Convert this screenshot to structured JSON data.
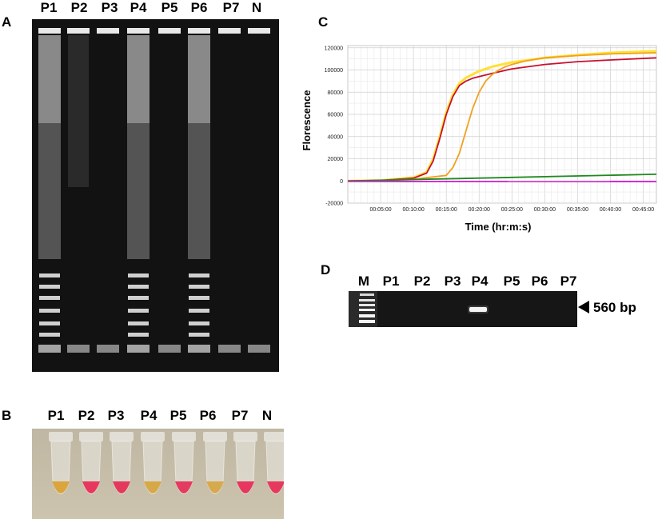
{
  "panels": {
    "A": {
      "letter": "A",
      "lanes": [
        "P1",
        "P2",
        "P3",
        "P4",
        "P5",
        "P6",
        "P7",
        "N"
      ]
    },
    "B": {
      "letter": "B",
      "lanes": [
        "P1",
        "P2",
        "P3",
        "P4",
        "P5",
        "P6",
        "P7",
        "N"
      ],
      "tube_colors": [
        "#d9a53c",
        "#e8375e",
        "#e33a5c",
        "#d6a848",
        "#e43b60",
        "#d7a94e",
        "#e5375f",
        "#e53a5e"
      ]
    },
    "C": {
      "letter": "C",
      "xlabel": "Time (hr:m:s)",
      "ylabel": "Florescence"
    },
    "D": {
      "letter": "D",
      "lanes": [
        "M",
        "P1",
        "P2",
        "P3",
        "P4",
        "P5",
        "P6",
        "P7"
      ],
      "marker_label": "560 bp"
    }
  },
  "chart_data": {
    "type": "line",
    "xlabel": "Time (hr:m:s)",
    "ylabel": "Florescence",
    "x_ticks": [
      "00:05:00",
      "00:10:00",
      "00:15:00",
      "00:20:00",
      "00:25:00",
      "00:30:00",
      "00:35:00",
      "00:40:00",
      "00:45:00"
    ],
    "y_ticks": [
      -20000,
      0,
      20000,
      40000,
      60000,
      80000,
      100000,
      120000
    ],
    "xlim": [
      0,
      47
    ],
    "ylim": [
      -20000,
      122000
    ],
    "grid": true,
    "series": [
      {
        "color": "#ffe135",
        "x": [
          0,
          5,
          10,
          12,
          13,
          14,
          15,
          16,
          17,
          18,
          19,
          20,
          22,
          25,
          30,
          35,
          40,
          47
        ],
        "y": [
          0,
          500,
          3000,
          8000,
          20000,
          40000,
          62000,
          78000,
          88000,
          93000,
          96000,
          99000,
          103000,
          107000,
          111000,
          113500,
          115500,
          117000
        ]
      },
      {
        "color": "#c8102e",
        "x": [
          0,
          5,
          10,
          12,
          13,
          14,
          15,
          16,
          17,
          18,
          19,
          20,
          22,
          25,
          30,
          35,
          40,
          47
        ],
        "y": [
          0,
          400,
          2500,
          7000,
          18000,
          38000,
          60000,
          76000,
          86000,
          90000,
          92500,
          94000,
          97000,
          101000,
          105000,
          107500,
          109000,
          111000
        ]
      },
      {
        "color": "#f0a020",
        "x": [
          0,
          5,
          10,
          15,
          16,
          17,
          18,
          19,
          20,
          21,
          22,
          23,
          24,
          25,
          27,
          30,
          35,
          40,
          47
        ],
        "y": [
          0,
          300,
          1500,
          5000,
          12000,
          25000,
          45000,
          65000,
          80000,
          90000,
          96000,
          100000,
          103000,
          105000,
          108000,
          111000,
          113000,
          114500,
          115500
        ]
      },
      {
        "color": "#1f8a1f",
        "x": [
          0,
          47
        ],
        "y": [
          0,
          6000
        ]
      },
      {
        "color": "#d020d0",
        "x": [
          0,
          47
        ],
        "y": [
          -500,
          -600
        ]
      }
    ]
  }
}
